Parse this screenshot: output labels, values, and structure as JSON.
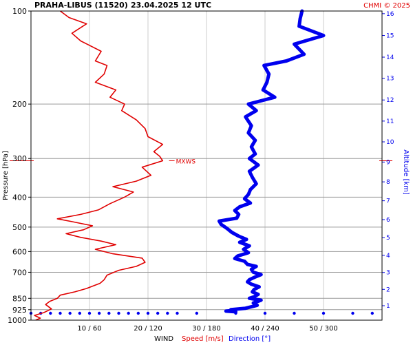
{
  "header": {
    "title": "PRAHA-LIBUS (11520)",
    "datetime": "23.04.2025 12 UTC",
    "copyright": "CHMI © 2025"
  },
  "colors": {
    "speed": "#e00000",
    "direction": "#0000ee",
    "grid": "#999999",
    "frame": "#000000"
  },
  "chart_data": {
    "type": "line",
    "title": "PRAHA-LIBUS (11520)    23.04.2025 12 UTC",
    "ylabel": "Pressure [hPa]",
    "y2label": "Altitude [km]",
    "xlabel_parts": [
      "WIND",
      "Speed [m/s]",
      "Direction [°]"
    ],
    "y_scale": "log",
    "ylim": [
      1000,
      100
    ],
    "pressure_ticks": [
      100,
      200,
      300,
      400,
      500,
      600,
      700,
      850,
      925,
      1000
    ],
    "altitude_ticks": [
      {
        "km": 1,
        "p": 898
      },
      {
        "km": 2,
        "p": 795
      },
      {
        "km": 3,
        "p": 701
      },
      {
        "km": 4,
        "p": 617
      },
      {
        "km": 5,
        "p": 541
      },
      {
        "km": 6,
        "p": 473
      },
      {
        "km": 7,
        "p": 411
      },
      {
        "km": 8,
        "p": 357
      },
      {
        "km": 9,
        "p": 308
      },
      {
        "km": 10,
        "p": 265
      },
      {
        "km": 11,
        "p": 227
      },
      {
        "km": 12,
        "p": 194
      },
      {
        "km": 13,
        "p": 165
      },
      {
        "km": 14,
        "p": 141
      },
      {
        "km": 15,
        "p": 120
      },
      {
        "km": 16,
        "p": 102
      }
    ],
    "x_ticks": [
      {
        "speed": 10,
        "direction": 60,
        "label": "10 / 60"
      },
      {
        "speed": 20,
        "direction": 120,
        "label": "20 / 120"
      },
      {
        "speed": 30,
        "direction": 180,
        "label": "30 / 180"
      },
      {
        "speed": 40,
        "direction": 240,
        "label": "40 / 240"
      },
      {
        "speed": 50,
        "direction": 300,
        "label": "50 / 300"
      }
    ],
    "speed_range": [
      0,
      60
    ],
    "direction_range": [
      0,
      360
    ],
    "max_wind": {
      "label": "MXWS",
      "pressure": 305,
      "speed": 23.6
    },
    "series": [
      {
        "name": "Speed [m/s]",
        "points": [
          [
            0.8,
            1000
          ],
          [
            1.6,
            985
          ],
          [
            0.6,
            965
          ],
          [
            2.2,
            945
          ],
          [
            3.5,
            920
          ],
          [
            2.5,
            890
          ],
          [
            3.2,
            870
          ],
          [
            4.5,
            850
          ],
          [
            5.0,
            830
          ],
          [
            7.5,
            810
          ],
          [
            9.5,
            790
          ],
          [
            11.8,
            760
          ],
          [
            12.5,
            740
          ],
          [
            13.0,
            715
          ],
          [
            15.0,
            690
          ],
          [
            18.0,
            670
          ],
          [
            19.5,
            650
          ],
          [
            19.0,
            630
          ],
          [
            14.0,
            610
          ],
          [
            11.0,
            590
          ],
          [
            14.5,
            570
          ],
          [
            12.0,
            555
          ],
          [
            8.5,
            540
          ],
          [
            6.0,
            525
          ],
          [
            9.0,
            510
          ],
          [
            10.5,
            495
          ],
          [
            7.0,
            480
          ],
          [
            4.5,
            470
          ],
          [
            8.5,
            455
          ],
          [
            11.5,
            440
          ],
          [
            13.5,
            420
          ],
          [
            16.0,
            400
          ],
          [
            17.5,
            385
          ],
          [
            14.0,
            370
          ],
          [
            18.0,
            355
          ],
          [
            20.5,
            340
          ],
          [
            19.0,
            320
          ],
          [
            22.5,
            305
          ],
          [
            22.0,
            295
          ],
          [
            21.0,
            285
          ],
          [
            22.5,
            270
          ],
          [
            20.0,
            255
          ],
          [
            19.5,
            240
          ],
          [
            18.0,
            225
          ],
          [
            15.5,
            210
          ],
          [
            16.0,
            200
          ],
          [
            13.5,
            190
          ],
          [
            14.5,
            180
          ],
          [
            11.0,
            170
          ],
          [
            12.5,
            160
          ],
          [
            13.0,
            150
          ],
          [
            11.0,
            145
          ],
          [
            12.0,
            135
          ],
          [
            8.5,
            125
          ],
          [
            7.0,
            118
          ],
          [
            9.5,
            110
          ],
          [
            6.5,
            105
          ],
          [
            5.0,
            100
          ]
        ]
      },
      {
        "name": "Direction [°]",
        "points": [
          [
            210,
            940
          ],
          [
            200,
            935
          ],
          [
            209,
            930
          ],
          [
            205,
            925
          ],
          [
            220,
            915
          ],
          [
            232,
            895
          ],
          [
            228,
            880
          ],
          [
            236,
            862
          ],
          [
            224,
            850
          ],
          [
            229,
            840
          ],
          [
            233,
            825
          ],
          [
            227,
            810
          ],
          [
            229,
            795
          ],
          [
            234,
            780
          ],
          [
            226,
            765
          ],
          [
            222,
            752
          ],
          [
            224,
            740
          ],
          [
            230,
            725
          ],
          [
            236,
            712
          ],
          [
            228,
            700
          ],
          [
            226,
            685
          ],
          [
            231,
            670
          ],
          [
            222,
            660
          ],
          [
            219,
            645
          ],
          [
            209,
            632
          ],
          [
            212,
            620
          ],
          [
            223,
            605
          ],
          [
            218,
            590
          ],
          [
            224,
            575
          ],
          [
            214,
            560
          ],
          [
            221,
            548
          ],
          [
            213,
            535
          ],
          [
            206,
            520
          ],
          [
            201,
            505
          ],
          [
            195,
            490
          ],
          [
            193,
            478
          ],
          [
            211,
            468
          ],
          [
            213,
            455
          ],
          [
            209,
            442
          ],
          [
            214,
            430
          ],
          [
            225,
            418
          ],
          [
            219,
            405
          ],
          [
            223,
            392
          ],
          [
            225,
            378
          ],
          [
            231,
            362
          ],
          [
            227,
            345
          ],
          [
            224,
            330
          ],
          [
            233,
            315
          ],
          [
            224,
            300
          ],
          [
            230,
            290
          ],
          [
            226,
            275
          ],
          [
            230,
            262
          ],
          [
            223,
            248
          ],
          [
            226,
            235
          ],
          [
            220,
            220
          ],
          [
            231,
            210
          ],
          [
            223,
            200
          ],
          [
            250,
            190
          ],
          [
            238,
            180
          ],
          [
            242,
            170
          ],
          [
            244,
            160
          ],
          [
            239,
            150
          ],
          [
            262,
            145
          ],
          [
            280,
            138
          ],
          [
            270,
            128
          ],
          [
            300,
            120
          ],
          [
            275,
            112
          ],
          [
            276,
            106
          ],
          [
            278,
            100
          ]
        ]
      }
    ],
    "surface_directions": [
      0,
      10,
      20,
      30,
      40,
      50,
      60,
      70,
      80,
      90,
      100,
      110,
      120,
      130,
      140,
      150,
      170,
      210,
      240,
      270,
      300,
      330,
      350
    ],
    "surface_pressure": 950
  }
}
